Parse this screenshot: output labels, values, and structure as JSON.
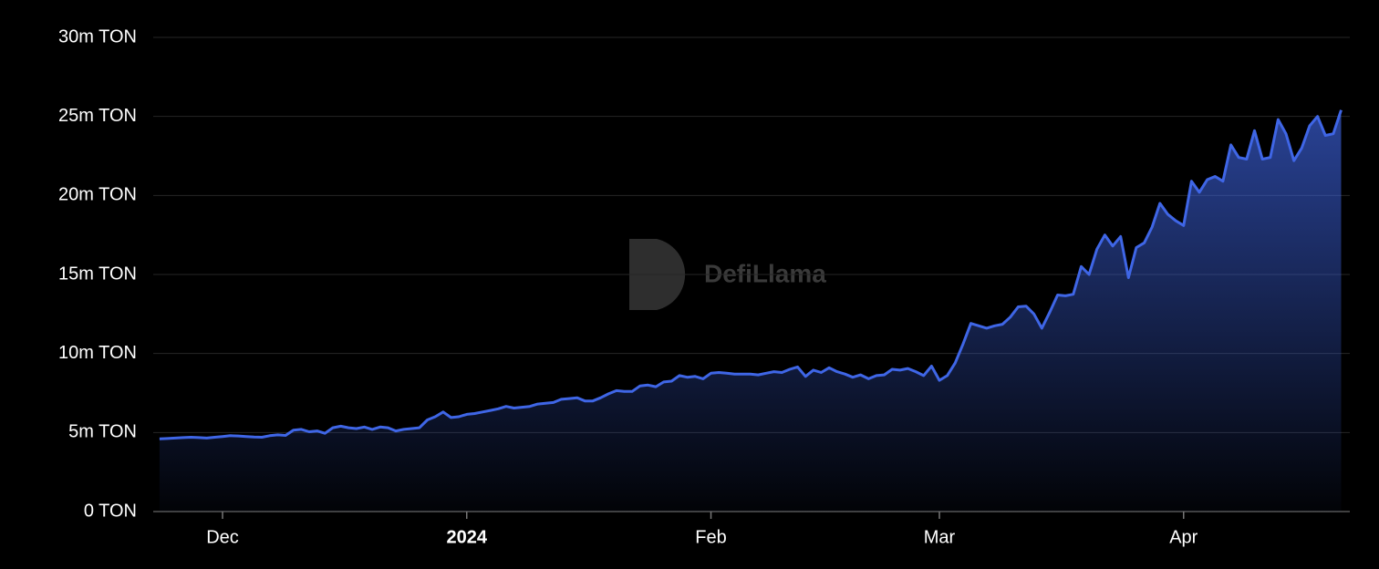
{
  "chart_data": {
    "type": "area",
    "watermark": "DefiLlama",
    "color": "#3f66e6",
    "grid": true,
    "xlim": [
      -0.8,
      151.1
    ],
    "xticks": [
      {
        "value": 8,
        "label": "Dec"
      },
      {
        "value": 39,
        "label": "2024"
      },
      {
        "value": 70,
        "label": "Feb"
      },
      {
        "value": 99,
        "label": "Mar"
      },
      {
        "value": 130,
        "label": "Apr"
      }
    ],
    "ylim": [
      0,
      30
    ],
    "yticks": [
      {
        "value": 0,
        "label": "0 TON"
      },
      {
        "value": 5,
        "label": "5m TON"
      },
      {
        "value": 10,
        "label": "10m TON"
      },
      {
        "value": 15,
        "label": "15m TON"
      },
      {
        "value": 20,
        "label": "20m TON"
      },
      {
        "value": 25,
        "label": "25m TON"
      },
      {
        "value": 30,
        "label": "30m TON"
      }
    ],
    "values": [
      4.6,
      4.62,
      4.65,
      4.68,
      4.7,
      4.68,
      4.65,
      4.7,
      4.75,
      4.8,
      4.78,
      4.75,
      4.72,
      4.7,
      4.8,
      4.85,
      4.82,
      5.15,
      5.2,
      5.05,
      5.1,
      4.95,
      5.3,
      5.4,
      5.3,
      5.25,
      5.35,
      5.2,
      5.35,
      5.3,
      5.1,
      5.2,
      5.25,
      5.3,
      5.8,
      6.0,
      6.3,
      5.95,
      6.0,
      6.15,
      6.2,
      6.3,
      6.4,
      6.5,
      6.65,
      6.55,
      6.6,
      6.65,
      6.8,
      6.85,
      6.9,
      7.1,
      7.15,
      7.2,
      7.0,
      7.0,
      7.2,
      7.45,
      7.65,
      7.6,
      7.6,
      7.95,
      8.0,
      7.9,
      8.2,
      8.25,
      8.6,
      8.5,
      8.55,
      8.4,
      8.75,
      8.8,
      8.75,
      8.7,
      8.7,
      8.7,
      8.65,
      8.75,
      8.85,
      8.8,
      9.0,
      9.15,
      8.55,
      8.95,
      8.8,
      9.1,
      8.85,
      8.7,
      8.5,
      8.65,
      8.4,
      8.6,
      8.65,
      9.0,
      8.95,
      9.05,
      8.85,
      8.6,
      9.2,
      8.3,
      8.6,
      9.4,
      10.6,
      11.9,
      11.75,
      11.6,
      11.75,
      11.85,
      12.3,
      12.95,
      13.0,
      12.5,
      11.6,
      12.6,
      13.7,
      13.65,
      13.75,
      15.5,
      15.0,
      16.6,
      17.5,
      16.8,
      17.4,
      14.8,
      16.7,
      17.0,
      18.0,
      19.5,
      18.8,
      18.4,
      18.1,
      20.9,
      20.2,
      21.0,
      21.2,
      20.9,
      23.2,
      22.4,
      22.3,
      24.1,
      22.3,
      22.4,
      24.8,
      23.9,
      22.2,
      23.0,
      24.4,
      25.0,
      23.8,
      23.9,
      25.4
    ]
  }
}
